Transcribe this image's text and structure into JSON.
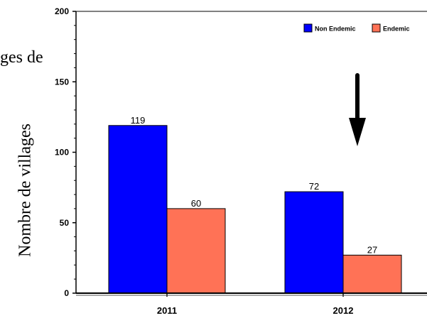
{
  "chart_data": {
    "type": "bar",
    "title_fragment": "ges de",
    "ylabel": "Nombre de villages",
    "xlabel": "",
    "categories": [
      "2011",
      "2012"
    ],
    "ylim": [
      0,
      200
    ],
    "yticks": [
      0,
      50,
      100,
      150,
      200
    ],
    "series": [
      {
        "name": "Non Endemic",
        "color": "#0000ff",
        "values": [
          119,
          72
        ]
      },
      {
        "name": "Endemic",
        "color": "#ff7256",
        "values": [
          60,
          27
        ]
      }
    ],
    "legend": "top-right",
    "grid": false,
    "annotation": "down-arrow-over-2012"
  }
}
